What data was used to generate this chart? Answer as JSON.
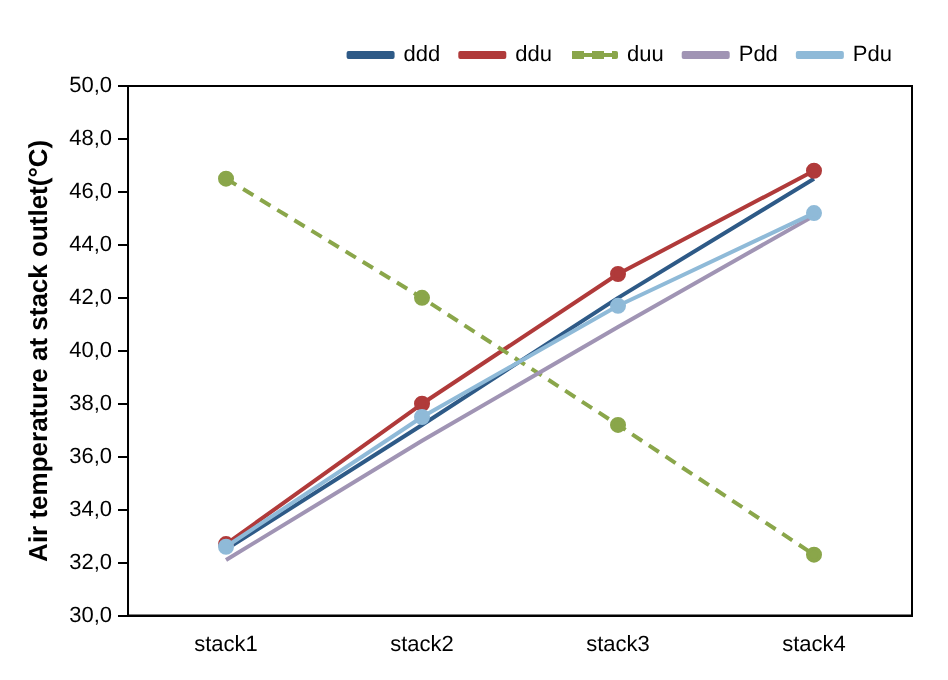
{
  "chart_data": {
    "type": "line",
    "ylabel": "Air temperature at stack outlet(°C)",
    "categories": [
      "stack1",
      "stack2",
      "stack3",
      "stack4"
    ],
    "series": [
      {
        "name": "ddd",
        "color": "#2e5a87",
        "values": [
          32.5,
          37.2,
          42.0,
          46.5
        ],
        "marker": "none",
        "line_style": "solid"
      },
      {
        "name": "ddu",
        "color": "#b03a3a",
        "values": [
          32.7,
          38.0,
          42.9,
          46.8
        ],
        "marker": "circle",
        "line_style": "solid"
      },
      {
        "name": "duu",
        "color": "#8aa64a",
        "values": [
          46.5,
          42.0,
          37.2,
          32.3
        ],
        "marker": "circle",
        "line_style": "dashed"
      },
      {
        "name": "Pdd",
        "color": "#a094b4",
        "values": [
          32.1,
          36.6,
          40.9,
          45.1
        ],
        "marker": "none",
        "line_style": "solid"
      },
      {
        "name": "Pdu",
        "color": "#8fbad8",
        "values": [
          32.6,
          37.5,
          41.7,
          45.2
        ],
        "marker": "circle",
        "line_style": "solid"
      }
    ],
    "ylim": [
      30,
      50
    ],
    "yticks": [
      {
        "value": 30,
        "label": "30,0"
      },
      {
        "value": 32,
        "label": "32,0"
      },
      {
        "value": 34,
        "label": "34,0"
      },
      {
        "value": 36,
        "label": "36,0"
      },
      {
        "value": 38,
        "label": "38,0"
      },
      {
        "value": 40,
        "label": "40,0"
      },
      {
        "value": 42,
        "label": "42,0"
      },
      {
        "value": 44,
        "label": "44,0"
      },
      {
        "value": 46,
        "label": "46,0"
      },
      {
        "value": 48,
        "label": "48,0"
      },
      {
        "value": 50,
        "label": "50,0"
      }
    ],
    "grid": false,
    "legend": "top right"
  }
}
